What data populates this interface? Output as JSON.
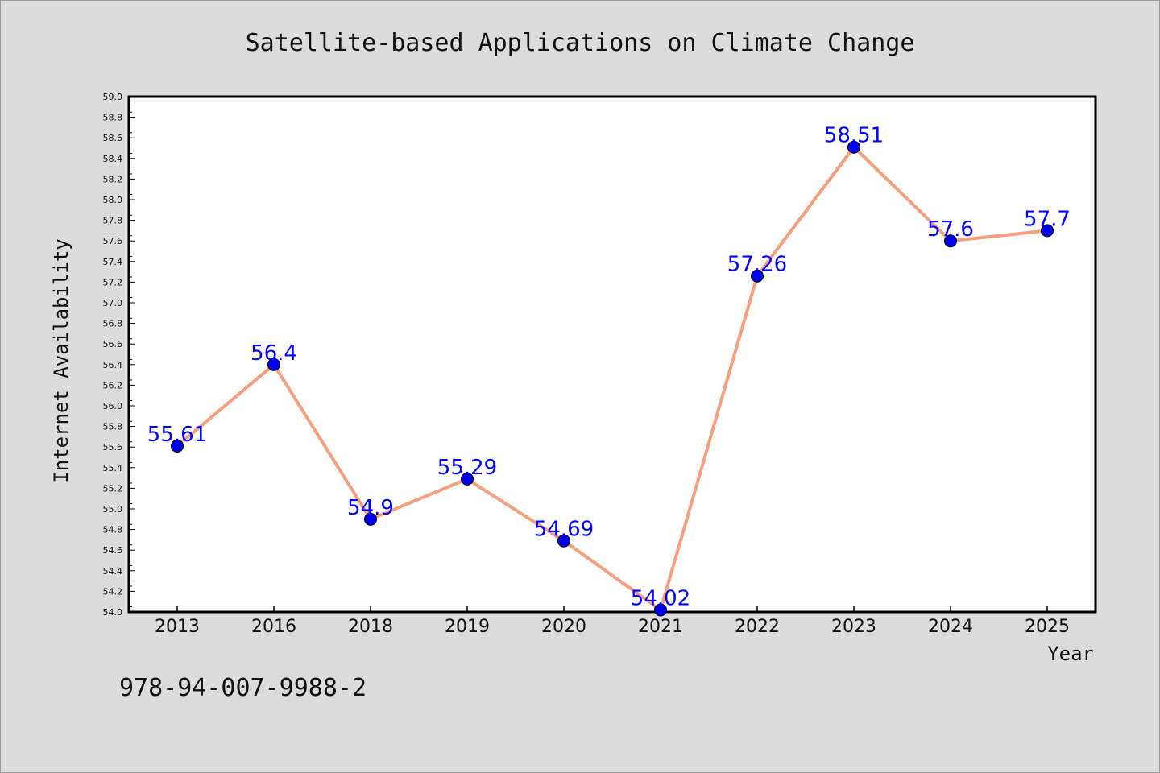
{
  "chart_data": {
    "type": "line",
    "title": "Satellite-based Applications on Climate Change",
    "xlabel": "Year",
    "ylabel": "Internet Availability",
    "categories": [
      "2013",
      "2016",
      "2018",
      "2019",
      "2020",
      "2021",
      "2022",
      "2023",
      "2024",
      "2025"
    ],
    "values": [
      55.61,
      56.4,
      54.9,
      55.29,
      54.69,
      54.02,
      57.26,
      58.51,
      57.6,
      57.7
    ],
    "data_labels": [
      "55.61",
      "56.4",
      "54.9",
      "55.29",
      "54.69",
      "54.02",
      "57.26",
      "58.51",
      "57.6",
      "57.7"
    ],
    "ylim": [
      54.0,
      59.0
    ],
    "yticks": [
      "54.0",
      "54.2",
      "54.4",
      "54.6",
      "54.8",
      "55.0",
      "55.2",
      "55.4",
      "55.6",
      "55.8",
      "56.0",
      "56.2",
      "56.4",
      "56.6",
      "56.8",
      "57.0",
      "57.2",
      "57.4",
      "57.6",
      "57.8",
      "58.0",
      "58.2",
      "58.4",
      "58.6",
      "58.8",
      "59.0"
    ],
    "grid": false,
    "legend": "none",
    "line_color": "#f4a07e",
    "marker_color": "#0000ee",
    "label_color": "#0000ff"
  },
  "footer": {
    "isbn": "978-94-007-9988-2"
  }
}
